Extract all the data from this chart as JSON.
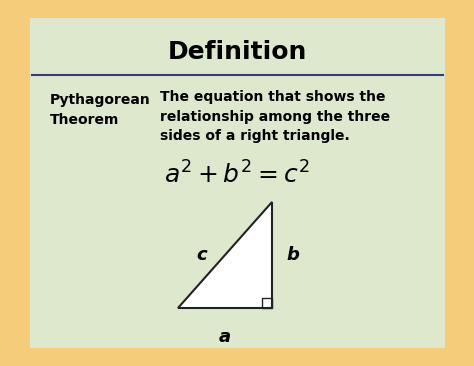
{
  "title": "Definition",
  "term": "Pythagorean\nTheorem",
  "definition": "The equation that shows the\nrelationship among the three\nsides of a right triangle.",
  "equation": "$a^2 + b^2 = c^2$",
  "bg_outer": "#f5cc7a",
  "bg_card": "#dde8cc",
  "title_color": "#000000",
  "text_color": "#000000",
  "divider_color": "#3a3a7a",
  "title_fontsize": 18,
  "term_fontsize": 10,
  "def_fontsize": 10,
  "eq_fontsize": 18,
  "label_fontsize": 13,
  "label_a": "a",
  "label_b": "b",
  "label_c": "c"
}
